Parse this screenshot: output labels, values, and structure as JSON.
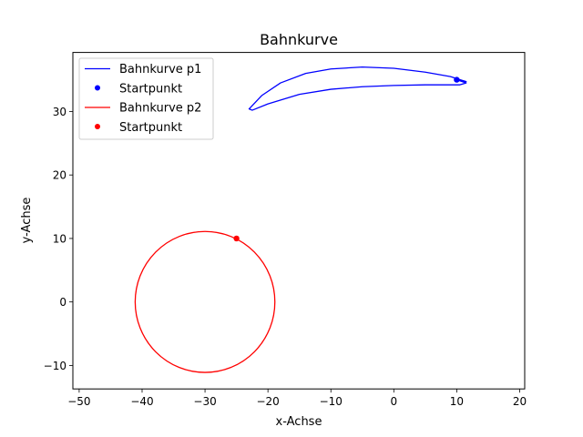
{
  "chart_data": {
    "type": "line",
    "title": "Bahnkurve",
    "xlabel": "x-Achse",
    "ylabel": "y-Achse",
    "xlim": [
      -51,
      20.8
    ],
    "ylim": [
      -13.7,
      39.3
    ],
    "xticks": [
      -50,
      -40,
      -30,
      -20,
      -10,
      0,
      10,
      20
    ],
    "yticks": [
      -10,
      0,
      10,
      20,
      30
    ],
    "xtick_labels": [
      "−50",
      "−40",
      "−30",
      "−20",
      "−10",
      "0",
      "10",
      "20"
    ],
    "ytick_labels": [
      "−10",
      "0",
      "10",
      "20",
      "30"
    ],
    "grid": false,
    "legend_placement": "top-left",
    "series": [
      {
        "name": "Bahnkurve p1",
        "kind": "line",
        "color": "#0000ff",
        "points": [
          [
            10,
            35.0
          ],
          [
            11.5,
            34.5
          ],
          [
            10.5,
            34.2
          ],
          [
            5,
            34.2
          ],
          [
            0,
            34.1
          ],
          [
            -5,
            33.9
          ],
          [
            -10,
            33.5
          ],
          [
            -15,
            32.7
          ],
          [
            -20,
            31.2
          ],
          [
            -22.5,
            30.2
          ],
          [
            -23,
            30.4
          ],
          [
            -21,
            32.5
          ],
          [
            -18,
            34.5
          ],
          [
            -14,
            36.0
          ],
          [
            -10,
            36.7
          ],
          [
            -5,
            37.0
          ],
          [
            0,
            36.8
          ],
          [
            5,
            36.2
          ],
          [
            9,
            35.5
          ],
          [
            11.5,
            34.7
          ]
        ]
      },
      {
        "name": "Startpunkt",
        "kind": "point",
        "color": "#0000ff",
        "points": [
          [
            10,
            35
          ]
        ]
      },
      {
        "name": "Bahnkurve p2",
        "kind": "circle",
        "color": "#ff0000",
        "center": [
          -30,
          0
        ],
        "radius": 11.1
      },
      {
        "name": "Startpunkt",
        "kind": "point",
        "color": "#ff0000",
        "points": [
          [
            -25,
            10
          ]
        ]
      }
    ]
  }
}
